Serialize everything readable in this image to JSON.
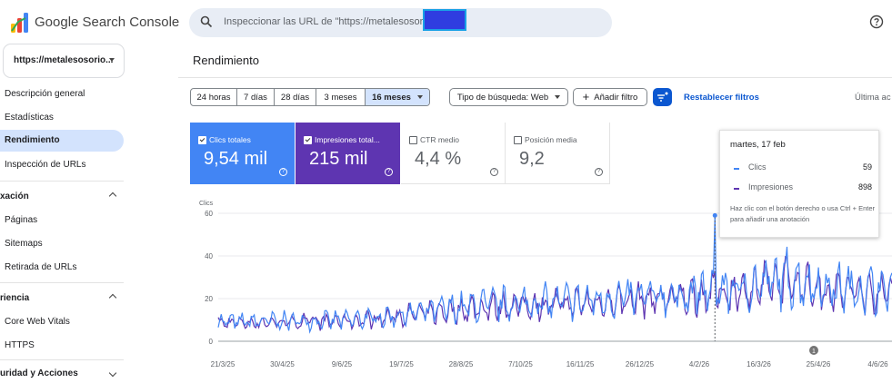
{
  "app": {
    "title": "Google Search Console",
    "search_placeholder": "Inspeccionar las URL de \"https://metalesosorio",
    "property": "https://metalesosorio..."
  },
  "sidebar": {
    "items": [
      {
        "label": "Descripción general"
      },
      {
        "label": "Estadísticas"
      },
      {
        "label": "Rendimiento",
        "active": true
      },
      {
        "label": "Inspección de URLs"
      }
    ],
    "sections": [
      {
        "label": "xación",
        "items": [
          "Páginas",
          "Sitemaps",
          "Retirada de URLs"
        ]
      },
      {
        "label": "riencia",
        "items": [
          "Core Web Vitals",
          "HTTPS"
        ]
      },
      {
        "label": "uridad y Acciones"
      }
    ]
  },
  "page_title": "Rendimiento",
  "filters": {
    "ranges": [
      "24 horas",
      "7 días",
      "28 días",
      "3 meses",
      "16 meses"
    ],
    "selected_range": "16 meses",
    "search_type": "Tipo de búsqueda: Web",
    "add_filter": "Añadir filtro",
    "reset": "Restablecer filtros",
    "last_updated": "Última ac"
  },
  "metrics": [
    {
      "label": "Clics totales",
      "value": "9,54 mil",
      "checked": true,
      "color": "#4285f4"
    },
    {
      "label": "Impresiones total...",
      "value": "215 mil",
      "checked": true,
      "color": "#5e35b1"
    },
    {
      "label": "CTR medio",
      "value": "4,4 %",
      "checked": false,
      "color": "#ffffff"
    },
    {
      "label": "Posición media",
      "value": "9,2",
      "checked": false,
      "color": "#ffffff"
    }
  ],
  "chart_data": {
    "type": "line",
    "ylabel": "Clics",
    "yticks": [
      0,
      20,
      40,
      60
    ],
    "ylim": [
      0,
      60
    ],
    "x_tick_labels": [
      "21/3/25",
      "30/4/25",
      "9/6/25",
      "19/7/25",
      "28/8/25",
      "7/10/25",
      "16/11/25",
      "26/12/25",
      "4/2/26",
      "16/3/26",
      "25/4/26",
      "4/6/26"
    ],
    "grid": true,
    "series": [
      {
        "name": "Clics",
        "color": "#4285f4"
      },
      {
        "name": "Impresiones",
        "color": "#5e35b1"
      }
    ],
    "trend_keypoints_clics": [
      [
        0,
        9
      ],
      [
        0.2,
        10
      ],
      [
        0.4,
        17
      ],
      [
        0.55,
        19
      ],
      [
        0.7,
        22
      ],
      [
        0.8,
        26
      ],
      [
        0.85,
        30
      ],
      [
        0.9,
        25
      ],
      [
        1.0,
        24
      ]
    ],
    "highlight": {
      "date": "martes, 17 feb",
      "clics": 59
    }
  },
  "tooltip": {
    "date": "martes, 17 feb",
    "rows": [
      {
        "label": "Clics",
        "value": "59"
      },
      {
        "label": "Impresiones",
        "value": "898"
      }
    ],
    "note": "Haz clic con el botón derecho o usa Ctrl + Enter para añadir una anotación"
  },
  "annotation_marker": "1"
}
